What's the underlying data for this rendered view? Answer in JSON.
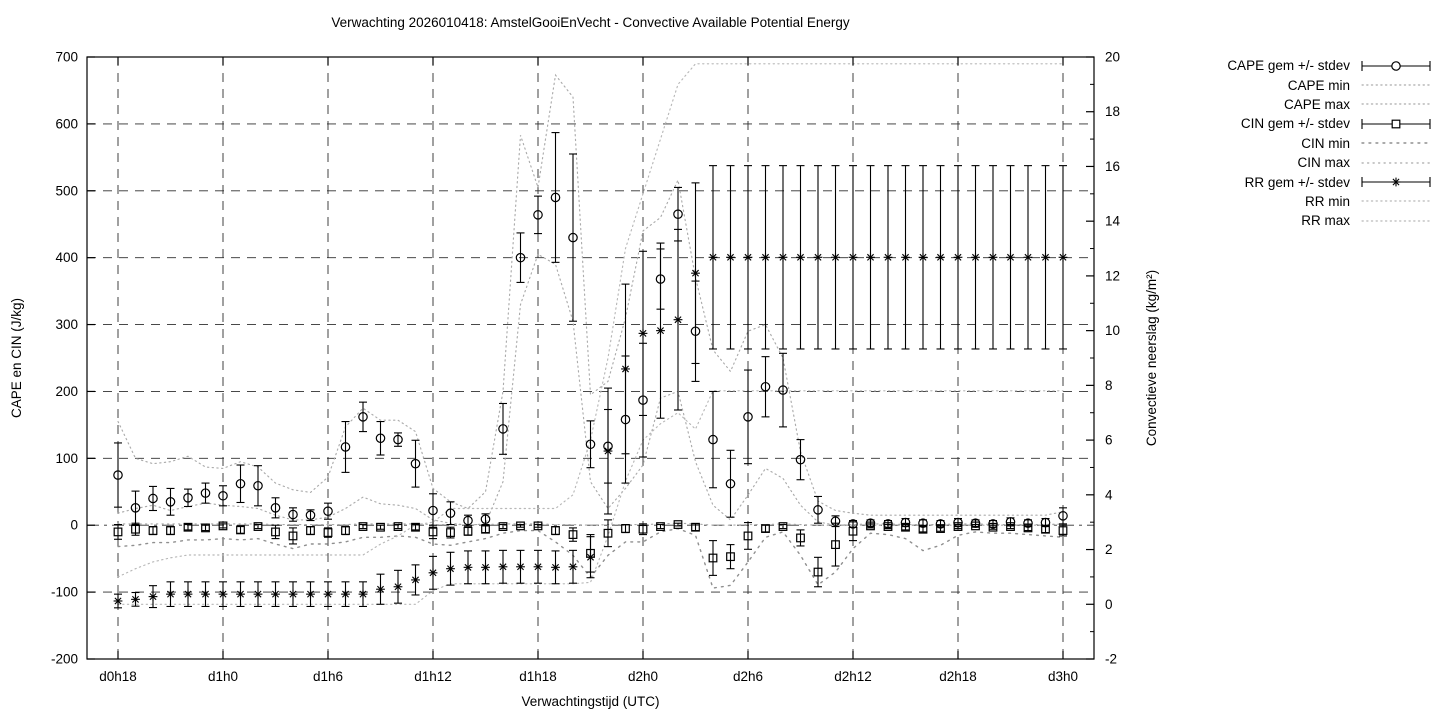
{
  "title": "Verwachting 2026010418: AmstelGooiEnVecht - Convective Available Potential Energy",
  "colors": {
    "foreground": "#000000",
    "grid": "#2e2e2e",
    "envelope_light": "#b4b4b4",
    "envelope_mid": "#ababab",
    "envelope_dark": "#8f8f8f"
  },
  "chart_data": {
    "type": "line",
    "subtype": "errorbars-with-min-max-envelopes",
    "title": "Verwachting 2026010418: AmstelGooiEnVecht - Convective Available Potential Energy",
    "xlabel": "Verwachtingstijd (UTC)",
    "ylabel_left": "CAPE en CIN (J/kg)",
    "ylabel_right": "Convectieve neerslag (kg/m²)",
    "grid": true,
    "legend_position": "outside-top-right",
    "ylim_left": [
      -200,
      700
    ],
    "ylim_right": [
      -2,
      20
    ],
    "yticks_left": [
      -200,
      -100,
      0,
      100,
      200,
      300,
      400,
      500,
      600,
      700
    ],
    "yticks_right": [
      -2,
      0,
      2,
      4,
      6,
      8,
      10,
      12,
      14,
      16,
      18,
      20
    ],
    "yticks_right_minor": [
      -1,
      1,
      3,
      5,
      7,
      9,
      11,
      13,
      15,
      17,
      19
    ],
    "x_tick_hours": [
      18,
      24,
      30,
      36,
      42,
      48,
      54,
      60,
      66,
      72
    ],
    "x_tick_labels": [
      "d0h18",
      "d1h0",
      "d1h6",
      "d1h12",
      "d1h18",
      "d2h0",
      "d2h6",
      "d2h12",
      "d2h18",
      "d3h0"
    ],
    "x_hours": [
      18,
      19,
      20,
      21,
      22,
      23,
      24,
      25,
      26,
      27,
      28,
      29,
      30,
      31,
      32,
      33,
      34,
      35,
      36,
      37,
      38,
      39,
      40,
      41,
      42,
      43,
      44,
      45,
      46,
      47,
      48,
      49,
      50,
      51,
      52,
      53,
      54,
      55,
      56,
      57,
      58,
      59,
      60,
      61,
      62,
      63,
      64,
      65,
      66,
      67,
      68,
      69,
      70,
      71,
      72
    ],
    "series": [
      {
        "id": "cape_gem",
        "label": "CAPE gem +/- stdev",
        "axis": "left",
        "type": "errorbar",
        "marker": "circle",
        "color": "#000000",
        "dash": "",
        "values": [
          75,
          26,
          40,
          35,
          41,
          48,
          44,
          62,
          59,
          26,
          16,
          15,
          21,
          117,
          162,
          130,
          128,
          92,
          22,
          18,
          7,
          9,
          144,
          400,
          464,
          490,
          430,
          121,
          118,
          158,
          187,
          368,
          465,
          290,
          128,
          62,
          162,
          207,
          202,
          98,
          23,
          6,
          2,
          3,
          2,
          4,
          3,
          2,
          4,
          3,
          2,
          5,
          3,
          4,
          14
        ],
        "stdev": [
          48,
          25,
          18,
          20,
          13,
          15,
          15,
          28,
          30,
          15,
          10,
          8,
          12,
          38,
          22,
          25,
          10,
          35,
          25,
          17,
          8,
          8,
          38,
          37,
          28,
          97,
          125,
          35,
          55,
          95,
          85,
          45,
          40,
          75,
          72,
          50,
          70,
          45,
          55,
          30,
          20,
          8,
          5,
          5,
          5,
          6,
          5,
          5,
          6,
          5,
          5,
          6,
          5,
          6,
          12
        ]
      },
      {
        "id": "cape_min",
        "label": "CAPE min",
        "axis": "left",
        "type": "dots",
        "marker": "",
        "color": "#ababab",
        "dash": "1.3 3.4",
        "values": [
          18,
          25,
          30,
          22,
          28,
          33,
          30,
          28,
          25,
          15,
          8,
          8,
          12,
          25,
          42,
          32,
          30,
          25,
          8,
          3,
          0,
          2,
          65,
          330,
          405,
          390,
          305,
          65,
          25,
          55,
          90,
          190,
          200,
          95,
          30,
          8,
          45,
          85,
          70,
          30,
          5,
          0,
          0,
          0,
          0,
          0,
          0,
          0,
          0,
          0,
          0,
          0,
          0,
          0,
          2
        ]
      },
      {
        "id": "cape_max",
        "label": "CAPE max",
        "axis": "left",
        "type": "dots",
        "marker": "",
        "color": "#ababab",
        "dash": "1.3 3.4",
        "values": [
          155,
          100,
          92,
          95,
          103,
          87,
          85,
          95,
          87,
          63,
          53,
          49,
          72,
          147,
          175,
          157,
          157,
          140,
          55,
          35,
          25,
          50,
          200,
          583,
          505,
          673,
          640,
          195,
          215,
          310,
          440,
          460,
          516,
          370,
          262,
          230,
          290,
          300,
          250,
          110,
          36,
          22,
          18,
          15,
          15,
          15,
          15,
          15,
          15,
          15,
          15,
          15,
          15,
          15,
          20
        ]
      },
      {
        "id": "cin_gem",
        "label": "CIN gem +/- stdev",
        "axis": "left",
        "type": "errorbar",
        "marker": "square",
        "color": "#000000",
        "dash": "",
        "values": [
          -10,
          -6,
          -8,
          -8,
          -3,
          -4,
          -1,
          -7,
          -2,
          -10,
          -16,
          -8,
          -11,
          -8,
          -2,
          -3,
          -2,
          -3,
          -10,
          -11,
          -9,
          -6,
          -2,
          -1,
          -1,
          -8,
          -14,
          -42,
          -12,
          -5,
          -6,
          -2,
          1,
          -3,
          -49,
          -47,
          -16,
          -5,
          -2,
          -19,
          -70,
          -29,
          -9,
          -1,
          -2,
          -3,
          -6,
          -5,
          -2,
          -1,
          -3,
          -2,
          -4,
          -6,
          -8
        ],
        "stdev": [
          11,
          9,
          6,
          6,
          4,
          4,
          3,
          5,
          3,
          10,
          12,
          6,
          7,
          6,
          3,
          3,
          3,
          4,
          10,
          8,
          6,
          5,
          3,
          2,
          2,
          6,
          10,
          28,
          20,
          6,
          8,
          3,
          2,
          5,
          26,
          18,
          20,
          5,
          3,
          12,
          22,
          32,
          14,
          3,
          3,
          4,
          4,
          4,
          3,
          2,
          3,
          3,
          4,
          5,
          8
        ]
      },
      {
        "id": "cin_min",
        "label": "CIN min",
        "axis": "left",
        "type": "dots",
        "marker": "",
        "color": "#8f8f8f",
        "dash": "1.8 5.2",
        "values": [
          -32,
          -30,
          -26,
          -26,
          -22,
          -22,
          -20,
          -22,
          -20,
          -28,
          -35,
          -28,
          -28,
          -25,
          -18,
          -18,
          -16,
          -18,
          -28,
          -30,
          -25,
          -20,
          -12,
          -8,
          -8,
          -25,
          -45,
          -78,
          -45,
          -25,
          -25,
          -10,
          -5,
          -15,
          -94,
          -90,
          -55,
          -18,
          -10,
          -45,
          -89,
          -70,
          -35,
          -12,
          -14,
          -20,
          -38,
          -30,
          -15,
          -10,
          -12,
          -12,
          -14,
          -16,
          -18
        ]
      },
      {
        "id": "cin_max",
        "label": "CIN max",
        "axis": "left",
        "type": "dots",
        "marker": "",
        "color": "#a8a8a8",
        "dash": "1.3 4.2",
        "values": [
          2,
          2,
          2,
          2,
          2,
          2,
          2,
          2,
          2,
          1,
          1,
          1,
          1,
          1,
          2,
          2,
          2,
          2,
          1,
          1,
          1,
          1,
          2,
          2,
          2,
          1,
          1,
          0,
          1,
          1,
          1,
          2,
          3,
          2,
          0,
          0,
          1,
          1,
          2,
          1,
          0,
          0,
          1,
          2,
          2,
          1,
          1,
          1,
          2,
          2,
          1,
          1,
          1,
          1,
          2
        ]
      },
      {
        "id": "rr_gem",
        "label": "RR gem +/- stdev",
        "axis": "right",
        "type": "errorbar",
        "marker": "star",
        "color": "#000000",
        "dash": "",
        "values": [
          0.12,
          0.18,
          0.28,
          0.37,
          0.37,
          0.37,
          0.37,
          0.37,
          0.37,
          0.37,
          0.37,
          0.37,
          0.37,
          0.37,
          0.37,
          0.55,
          0.64,
          0.89,
          1.15,
          1.3,
          1.35,
          1.35,
          1.37,
          1.37,
          1.37,
          1.35,
          1.37,
          1.72,
          5.6,
          8.6,
          9.9,
          10.0,
          10.4,
          12.1,
          12.68,
          12.68,
          12.68,
          12.68,
          12.68,
          12.68,
          12.68,
          12.68,
          12.68,
          12.68,
          12.68,
          12.68,
          12.68,
          12.68,
          12.68,
          12.68,
          12.68,
          12.68,
          12.68,
          12.68,
          12.68
        ],
        "stdev": [
          0.25,
          0.25,
          0.4,
          0.45,
          0.45,
          0.45,
          0.45,
          0.45,
          0.45,
          0.45,
          0.45,
          0.45,
          0.45,
          0.45,
          0.45,
          0.55,
          0.6,
          0.55,
          0.6,
          0.6,
          0.6,
          0.6,
          0.6,
          0.6,
          0.6,
          0.6,
          0.6,
          0.75,
          2.3,
          3.1,
          3.0,
          3.2,
          3.3,
          3.3,
          3.35,
          3.35,
          3.35,
          3.35,
          3.35,
          3.35,
          3.35,
          3.35,
          3.35,
          3.35,
          3.35,
          3.35,
          3.35,
          3.35,
          3.35,
          3.35,
          3.35,
          3.35,
          3.35,
          3.35,
          3.35
        ]
      },
      {
        "id": "rr_min",
        "label": "RR min",
        "axis": "right",
        "type": "dots",
        "marker": "",
        "color": "#b8b8b8",
        "dash": "1.3 3.4",
        "values": [
          0,
          0,
          0,
          0,
          0,
          0,
          0,
          0,
          0,
          0,
          0,
          0,
          0,
          0,
          0,
          0,
          0,
          0,
          0.5,
          0.75,
          0.75,
          0.75,
          0.75,
          0.75,
          0.75,
          0.75,
          0.75,
          0.8,
          2.5,
          4.5,
          6.0,
          6.6,
          7.0,
          6.4,
          7.8,
          7.8,
          7.8,
          7.8,
          7.8,
          7.8,
          7.8,
          7.8,
          7.8,
          7.8,
          7.8,
          7.8,
          7.8,
          7.8,
          7.8,
          7.8,
          7.8,
          7.8,
          7.8,
          7.8,
          7.8
        ]
      },
      {
        "id": "rr_max",
        "label": "RR max",
        "axis": "right",
        "type": "dots",
        "marker": "",
        "color": "#b8b8b8",
        "dash": "1.3 3.4",
        "values": [
          1.0,
          1.3,
          1.55,
          1.7,
          1.8,
          1.8,
          1.8,
          1.8,
          1.8,
          1.8,
          1.8,
          1.8,
          1.8,
          1.8,
          1.8,
          2.2,
          2.5,
          2.9,
          3.0,
          3.5,
          3.5,
          3.5,
          3.5,
          3.5,
          3.5,
          3.5,
          4.0,
          6.0,
          9.0,
          13.0,
          15.0,
          17.0,
          19.0,
          19.75,
          19.75,
          19.75,
          19.75,
          19.75,
          19.75,
          19.75,
          19.75,
          19.75,
          19.75,
          19.75,
          19.75,
          19.75,
          19.75,
          19.75,
          19.75,
          19.75,
          19.75,
          19.75,
          19.75,
          19.75,
          19.75
        ]
      }
    ]
  }
}
